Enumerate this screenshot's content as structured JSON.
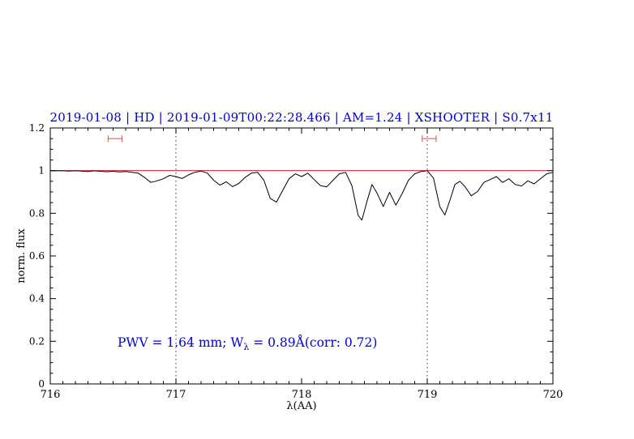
{
  "chart_data": {
    "type": "line",
    "title": "2019-01-08 | HD | 2019-01-09T00:22:28.466 | AM=1.24 | XSHOOTER | S0.7x11",
    "xlabel": "λ(AA)",
    "ylabel": "norm. flux",
    "xlim": [
      716,
      720
    ],
    "ylim": [
      0,
      1.2
    ],
    "x_ticks": [
      716,
      717,
      718,
      719,
      720
    ],
    "x_tick_labels": [
      "716",
      "717",
      "718",
      "719",
      "720"
    ],
    "y_ticks": [
      0,
      0.2,
      0.4,
      0.6,
      0.8,
      1.0,
      1.2
    ],
    "y_tick_labels": [
      "0",
      "0.2",
      "0.4",
      "0.6",
      "0.8",
      "1",
      "1.2"
    ],
    "grid": "off",
    "legend": "none",
    "vlines": [
      717,
      719
    ],
    "continuum_y": 1.0,
    "line_color": "#000000",
    "continuum_color": "#cc0000",
    "marker_color": "#cc5555",
    "vline_color": "#333333",
    "accent_color": "#0000cc",
    "markers": [
      {
        "x1": 716.46,
        "x2": 716.57,
        "y": 1.15
      },
      {
        "x1": 718.96,
        "x2": 719.07,
        "y": 1.15
      }
    ],
    "spectrum": [
      [
        716.0,
        1.0
      ],
      [
        716.05,
        0.999
      ],
      [
        716.1,
        1.0
      ],
      [
        716.15,
        0.998
      ],
      [
        716.2,
        1.0
      ],
      [
        716.25,
        0.998
      ],
      [
        716.3,
        0.996
      ],
      [
        716.35,
        0.999
      ],
      [
        716.4,
        0.997
      ],
      [
        716.45,
        0.995
      ],
      [
        716.5,
        0.997
      ],
      [
        716.55,
        0.994
      ],
      [
        716.6,
        0.996
      ],
      [
        716.65,
        0.992
      ],
      [
        716.7,
        0.988
      ],
      [
        716.75,
        0.968
      ],
      [
        716.8,
        0.945
      ],
      [
        716.85,
        0.952
      ],
      [
        716.9,
        0.962
      ],
      [
        716.95,
        0.978
      ],
      [
        717.0,
        0.972
      ],
      [
        717.05,
        0.963
      ],
      [
        717.1,
        0.98
      ],
      [
        717.15,
        0.992
      ],
      [
        717.2,
        0.998
      ],
      [
        717.25,
        0.988
      ],
      [
        717.3,
        0.955
      ],
      [
        717.35,
        0.932
      ],
      [
        717.4,
        0.948
      ],
      [
        717.45,
        0.925
      ],
      [
        717.5,
        0.94
      ],
      [
        717.55,
        0.968
      ],
      [
        717.6,
        0.988
      ],
      [
        717.65,
        0.992
      ],
      [
        717.7,
        0.955
      ],
      [
        717.75,
        0.87
      ],
      [
        717.8,
        0.852
      ],
      [
        717.85,
        0.908
      ],
      [
        717.9,
        0.962
      ],
      [
        717.95,
        0.985
      ],
      [
        718.0,
        0.972
      ],
      [
        718.05,
        0.988
      ],
      [
        718.1,
        0.958
      ],
      [
        718.15,
        0.93
      ],
      [
        718.2,
        0.924
      ],
      [
        718.25,
        0.955
      ],
      [
        718.3,
        0.985
      ],
      [
        718.35,
        0.992
      ],
      [
        718.4,
        0.93
      ],
      [
        718.45,
        0.79
      ],
      [
        718.48,
        0.768
      ],
      [
        718.52,
        0.855
      ],
      [
        718.56,
        0.935
      ],
      [
        718.6,
        0.895
      ],
      [
        718.65,
        0.832
      ],
      [
        718.7,
        0.898
      ],
      [
        718.75,
        0.838
      ],
      [
        718.8,
        0.892
      ],
      [
        718.85,
        0.955
      ],
      [
        718.9,
        0.985
      ],
      [
        718.95,
        0.996
      ],
      [
        719.0,
        1.0
      ],
      [
        719.05,
        0.965
      ],
      [
        719.1,
        0.83
      ],
      [
        719.14,
        0.792
      ],
      [
        719.18,
        0.86
      ],
      [
        719.22,
        0.935
      ],
      [
        719.26,
        0.95
      ],
      [
        719.3,
        0.925
      ],
      [
        719.35,
        0.882
      ],
      [
        719.4,
        0.902
      ],
      [
        719.45,
        0.945
      ],
      [
        719.5,
        0.958
      ],
      [
        719.55,
        0.972
      ],
      [
        719.6,
        0.945
      ],
      [
        719.65,
        0.962
      ],
      [
        719.7,
        0.935
      ],
      [
        719.75,
        0.928
      ],
      [
        719.8,
        0.952
      ],
      [
        719.85,
        0.938
      ],
      [
        719.9,
        0.962
      ],
      [
        719.95,
        0.985
      ],
      [
        720.0,
        0.992
      ]
    ]
  },
  "annotation": {
    "prefix": "PWV  =  1.64  mm; W",
    "sub": "λ",
    "suffix": "  =  0.89Å(corr: 0.72)"
  }
}
